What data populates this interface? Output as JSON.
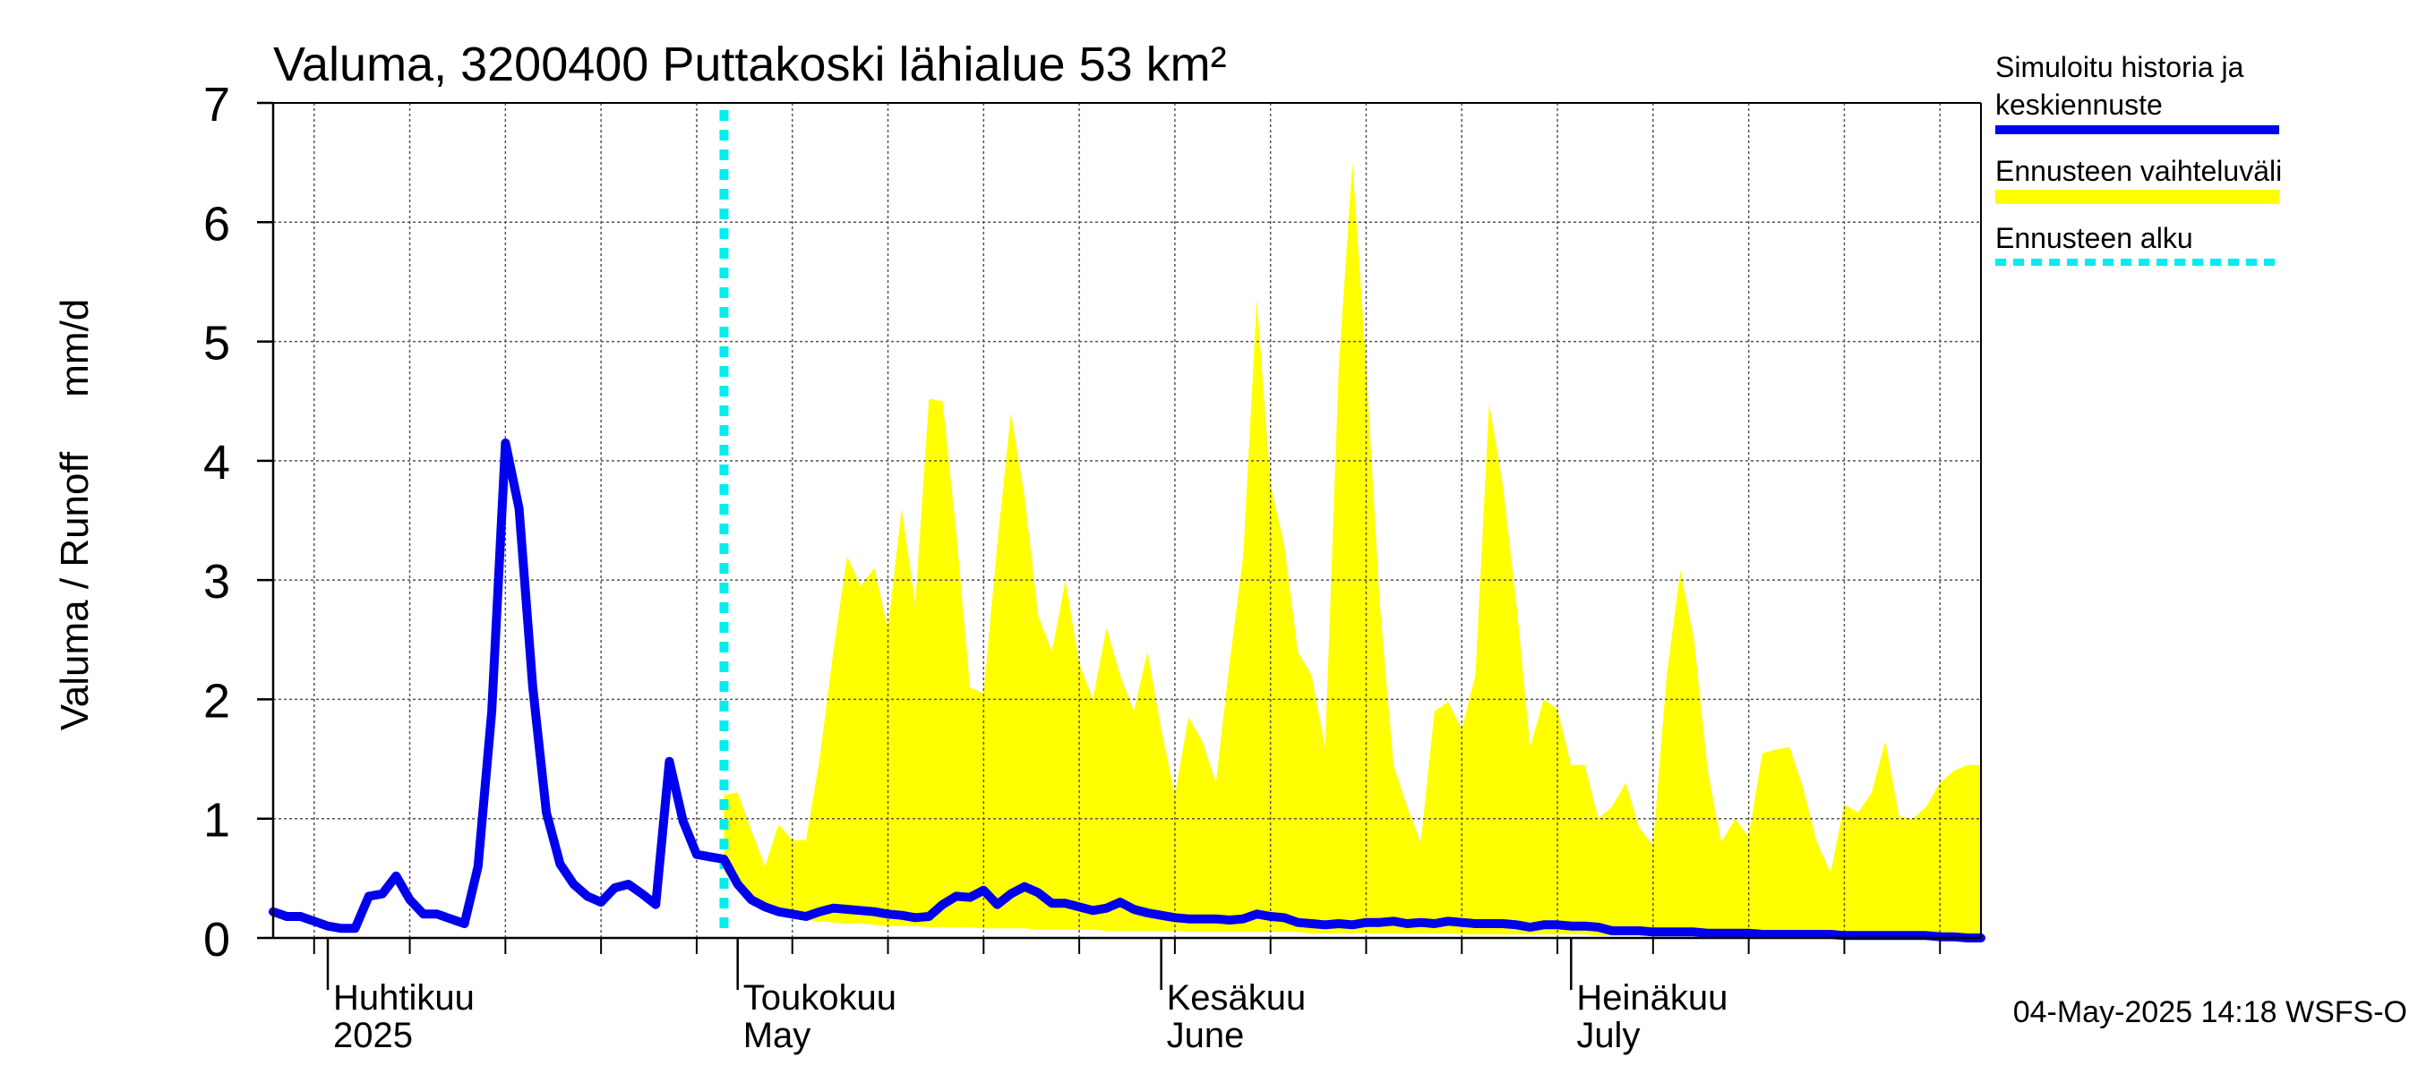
{
  "chart_data": {
    "type": "area",
    "title": "Valuma, 3200400 Puttakoski lähialue 53 km²",
    "ylabel": "Valuma / Runoff     mm/d",
    "ylim": [
      0,
      7
    ],
    "yticks": [
      0,
      1,
      2,
      3,
      4,
      5,
      6,
      7
    ],
    "xlim": [
      "2025-03-28",
      "2025-07-31"
    ],
    "month_labels": [
      {
        "date": "2025-04-01",
        "fi": "Huhtikuu",
        "en": "2025"
      },
      {
        "date": "2025-05-01",
        "fi": "Toukokuu",
        "en": "May"
      },
      {
        "date": "2025-06-01",
        "fi": "Kesäkuu",
        "en": "June"
      },
      {
        "date": "2025-07-01",
        "fi": "Heinäkuu",
        "en": "July"
      }
    ],
    "grid": true,
    "legend_position": "right",
    "legend": [
      {
        "label": "Simuloitu historia ja keskiennuste",
        "color": "#0000ee",
        "style": "solid"
      },
      {
        "label": "Ennusteen vaihteluväli",
        "color": "#ffff00",
        "style": "band"
      },
      {
        "label": "Ennusteen alku",
        "color": "#00eeee",
        "style": "dotted"
      }
    ],
    "forecast_start": "2025-04-30",
    "footer": "04-May-2025 14:18 WSFS-O",
    "series": [
      {
        "name": "Simuloitu historia ja keskiennuste",
        "color": "#0000ee",
        "points": [
          [
            "2025-03-28",
            0.22
          ],
          [
            "2025-03-29",
            0.18
          ],
          [
            "2025-03-30",
            0.18
          ],
          [
            "2025-03-31",
            0.14
          ],
          [
            "2025-04-01",
            0.1
          ],
          [
            "2025-04-02",
            0.08
          ],
          [
            "2025-04-03",
            0.08
          ],
          [
            "2025-04-04",
            0.35
          ],
          [
            "2025-04-05",
            0.37
          ],
          [
            "2025-04-06",
            0.52
          ],
          [
            "2025-04-07",
            0.32
          ],
          [
            "2025-04-08",
            0.2
          ],
          [
            "2025-04-09",
            0.2
          ],
          [
            "2025-04-10",
            0.16
          ],
          [
            "2025-04-11",
            0.12
          ],
          [
            "2025-04-12",
            0.6
          ],
          [
            "2025-04-13",
            1.9
          ],
          [
            "2025-04-14",
            4.15
          ],
          [
            "2025-04-15",
            3.6
          ],
          [
            "2025-04-16",
            2.1
          ],
          [
            "2025-04-17",
            1.05
          ],
          [
            "2025-04-18",
            0.62
          ],
          [
            "2025-04-19",
            0.45
          ],
          [
            "2025-04-20",
            0.35
          ],
          [
            "2025-04-21",
            0.3
          ],
          [
            "2025-04-22",
            0.42
          ],
          [
            "2025-04-23",
            0.45
          ],
          [
            "2025-04-24",
            0.37
          ],
          [
            "2025-04-25",
            0.28
          ],
          [
            "2025-04-26",
            1.48
          ],
          [
            "2025-04-27",
            0.98
          ],
          [
            "2025-04-28",
            0.7
          ],
          [
            "2025-04-29",
            0.68
          ],
          [
            "2025-04-30",
            0.66
          ],
          [
            "2025-05-01",
            0.45
          ],
          [
            "2025-05-02",
            0.32
          ],
          [
            "2025-05-03",
            0.26
          ],
          [
            "2025-05-04",
            0.22
          ],
          [
            "2025-05-05",
            0.2
          ],
          [
            "2025-05-06",
            0.18
          ],
          [
            "2025-05-07",
            0.22
          ],
          [
            "2025-05-08",
            0.25
          ],
          [
            "2025-05-09",
            0.24
          ],
          [
            "2025-05-10",
            0.23
          ],
          [
            "2025-05-11",
            0.22
          ],
          [
            "2025-05-12",
            0.2
          ],
          [
            "2025-05-13",
            0.19
          ],
          [
            "2025-05-14",
            0.17
          ],
          [
            "2025-05-15",
            0.18
          ],
          [
            "2025-05-16",
            0.28
          ],
          [
            "2025-05-17",
            0.35
          ],
          [
            "2025-05-18",
            0.34
          ],
          [
            "2025-05-19",
            0.4
          ],
          [
            "2025-05-20",
            0.28
          ],
          [
            "2025-05-21",
            0.37
          ],
          [
            "2025-05-22",
            0.43
          ],
          [
            "2025-05-23",
            0.38
          ],
          [
            "2025-05-24",
            0.29
          ],
          [
            "2025-05-25",
            0.29
          ],
          [
            "2025-05-26",
            0.26
          ],
          [
            "2025-05-27",
            0.23
          ],
          [
            "2025-05-28",
            0.25
          ],
          [
            "2025-05-29",
            0.3
          ],
          [
            "2025-05-30",
            0.24
          ],
          [
            "2025-05-31",
            0.21
          ],
          [
            "2025-06-01",
            0.19
          ],
          [
            "2025-06-02",
            0.17
          ],
          [
            "2025-06-03",
            0.16
          ],
          [
            "2025-06-04",
            0.16
          ],
          [
            "2025-06-05",
            0.16
          ],
          [
            "2025-06-06",
            0.15
          ],
          [
            "2025-06-07",
            0.16
          ],
          [
            "2025-06-08",
            0.2
          ],
          [
            "2025-06-09",
            0.18
          ],
          [
            "2025-06-10",
            0.17
          ],
          [
            "2025-06-11",
            0.13
          ],
          [
            "2025-06-12",
            0.12
          ],
          [
            "2025-06-13",
            0.11
          ],
          [
            "2025-06-14",
            0.12
          ],
          [
            "2025-06-15",
            0.11
          ],
          [
            "2025-06-16",
            0.13
          ],
          [
            "2025-06-17",
            0.13
          ],
          [
            "2025-06-18",
            0.14
          ],
          [
            "2025-06-19",
            0.12
          ],
          [
            "2025-06-20",
            0.13
          ],
          [
            "2025-06-21",
            0.12
          ],
          [
            "2025-06-22",
            0.14
          ],
          [
            "2025-06-23",
            0.13
          ],
          [
            "2025-06-24",
            0.12
          ],
          [
            "2025-06-25",
            0.12
          ],
          [
            "2025-06-26",
            0.12
          ],
          [
            "2025-06-27",
            0.11
          ],
          [
            "2025-06-28",
            0.09
          ],
          [
            "2025-06-29",
            0.11
          ],
          [
            "2025-06-30",
            0.11
          ],
          [
            "2025-07-01",
            0.1
          ],
          [
            "2025-07-02",
            0.1
          ],
          [
            "2025-07-03",
            0.09
          ],
          [
            "2025-07-04",
            0.06
          ],
          [
            "2025-07-05",
            0.06
          ],
          [
            "2025-07-06",
            0.06
          ],
          [
            "2025-07-07",
            0.05
          ],
          [
            "2025-07-08",
            0.05
          ],
          [
            "2025-07-09",
            0.05
          ],
          [
            "2025-07-10",
            0.05
          ],
          [
            "2025-07-11",
            0.04
          ],
          [
            "2025-07-12",
            0.04
          ],
          [
            "2025-07-13",
            0.04
          ],
          [
            "2025-07-14",
            0.04
          ],
          [
            "2025-07-15",
            0.03
          ],
          [
            "2025-07-16",
            0.03
          ],
          [
            "2025-07-17",
            0.03
          ],
          [
            "2025-07-18",
            0.03
          ],
          [
            "2025-07-19",
            0.03
          ],
          [
            "2025-07-20",
            0.03
          ],
          [
            "2025-07-21",
            0.02
          ],
          [
            "2025-07-22",
            0.02
          ],
          [
            "2025-07-23",
            0.02
          ],
          [
            "2025-07-24",
            0.02
          ],
          [
            "2025-07-25",
            0.02
          ],
          [
            "2025-07-26",
            0.02
          ],
          [
            "2025-07-27",
            0.02
          ],
          [
            "2025-07-28",
            0.01
          ],
          [
            "2025-07-29",
            0.01
          ],
          [
            "2025-07-30",
            0.0
          ],
          [
            "2025-07-31",
            0.0
          ]
        ]
      },
      {
        "name": "Ennusteen vaihteluväli",
        "color": "#ffff00",
        "points": [
          [
            "2025-04-30",
            0.55,
            1.2
          ],
          [
            "2025-05-01",
            0.45,
            1.22
          ],
          [
            "2025-05-02",
            0.35,
            0.9
          ],
          [
            "2025-05-03",
            0.27,
            0.6
          ],
          [
            "2025-05-04",
            0.22,
            0.95
          ],
          [
            "2025-05-05",
            0.18,
            0.82
          ],
          [
            "2025-05-06",
            0.15,
            0.82
          ],
          [
            "2025-05-07",
            0.14,
            1.5
          ],
          [
            "2025-05-08",
            0.13,
            2.4
          ],
          [
            "2025-05-09",
            0.12,
            3.2
          ],
          [
            "2025-05-10",
            0.12,
            2.95
          ],
          [
            "2025-05-11",
            0.11,
            3.1
          ],
          [
            "2025-05-12",
            0.1,
            2.6
          ],
          [
            "2025-05-13",
            0.1,
            3.6
          ],
          [
            "2025-05-14",
            0.1,
            2.8
          ],
          [
            "2025-05-15",
            0.09,
            4.52
          ],
          [
            "2025-05-16",
            0.09,
            4.5
          ],
          [
            "2025-05-17",
            0.09,
            3.4
          ],
          [
            "2025-05-18",
            0.09,
            2.1
          ],
          [
            "2025-05-19",
            0.08,
            2.05
          ],
          [
            "2025-05-20",
            0.08,
            3.3
          ],
          [
            "2025-05-21",
            0.08,
            4.4
          ],
          [
            "2025-05-22",
            0.08,
            3.7
          ],
          [
            "2025-05-23",
            0.07,
            2.7
          ],
          [
            "2025-05-24",
            0.07,
            2.4
          ],
          [
            "2025-05-25",
            0.07,
            3.0
          ],
          [
            "2025-05-26",
            0.07,
            2.3
          ],
          [
            "2025-05-27",
            0.07,
            2.0
          ],
          [
            "2025-05-28",
            0.06,
            2.6
          ],
          [
            "2025-05-29",
            0.06,
            2.2
          ],
          [
            "2025-05-30",
            0.06,
            1.9
          ],
          [
            "2025-05-31",
            0.06,
            2.4
          ],
          [
            "2025-06-01",
            0.06,
            1.75
          ],
          [
            "2025-06-02",
            0.06,
            1.2
          ],
          [
            "2025-06-03",
            0.05,
            1.85
          ],
          [
            "2025-06-04",
            0.05,
            1.65
          ],
          [
            "2025-06-05",
            0.05,
            1.3
          ],
          [
            "2025-06-06",
            0.05,
            2.3
          ],
          [
            "2025-06-07",
            0.05,
            3.2
          ],
          [
            "2025-06-08",
            0.05,
            5.35
          ],
          [
            "2025-06-09",
            0.05,
            3.8
          ],
          [
            "2025-06-10",
            0.05,
            3.3
          ],
          [
            "2025-06-11",
            0.05,
            2.4
          ],
          [
            "2025-06-12",
            0.04,
            2.2
          ],
          [
            "2025-06-13",
            0.04,
            1.6
          ],
          [
            "2025-06-14",
            0.04,
            4.8
          ],
          [
            "2025-06-15",
            0.04,
            6.5
          ],
          [
            "2025-06-16",
            0.04,
            4.8
          ],
          [
            "2025-06-17",
            0.04,
            2.8
          ],
          [
            "2025-06-18",
            0.04,
            1.45
          ],
          [
            "2025-06-19",
            0.04,
            1.1
          ],
          [
            "2025-06-20",
            0.04,
            0.8
          ],
          [
            "2025-06-21",
            0.04,
            1.9
          ],
          [
            "2025-06-22",
            0.04,
            1.98
          ],
          [
            "2025-06-23",
            0.03,
            1.75
          ],
          [
            "2025-06-24",
            0.03,
            2.2
          ],
          [
            "2025-06-25",
            0.03,
            4.48
          ],
          [
            "2025-06-26",
            0.03,
            3.8
          ],
          [
            "2025-06-27",
            0.03,
            2.8
          ],
          [
            "2025-06-28",
            0.03,
            1.6
          ],
          [
            "2025-06-29",
            0.03,
            2.0
          ],
          [
            "2025-06-30",
            0.03,
            1.92
          ],
          [
            "2025-07-01",
            0.03,
            1.45
          ],
          [
            "2025-07-02",
            0.03,
            1.45
          ],
          [
            "2025-07-03",
            0.02,
            1.0
          ],
          [
            "2025-07-04",
            0.02,
            1.1
          ],
          [
            "2025-07-05",
            0.02,
            1.3
          ],
          [
            "2025-07-06",
            0.02,
            0.92
          ],
          [
            "2025-07-07",
            0.02,
            0.78
          ],
          [
            "2025-07-08",
            0.02,
            2.2
          ],
          [
            "2025-07-09",
            0.02,
            3.08
          ],
          [
            "2025-07-10",
            0.02,
            2.5
          ],
          [
            "2025-07-11",
            0.02,
            1.4
          ],
          [
            "2025-07-12",
            0.02,
            0.8
          ],
          [
            "2025-07-13",
            0.02,
            1.0
          ],
          [
            "2025-07-14",
            0.02,
            0.85
          ],
          [
            "2025-07-15",
            0.02,
            1.55
          ],
          [
            "2025-07-16",
            0.01,
            1.58
          ],
          [
            "2025-07-17",
            0.01,
            1.6
          ],
          [
            "2025-07-18",
            0.01,
            1.25
          ],
          [
            "2025-07-19",
            0.01,
            0.8
          ],
          [
            "2025-07-20",
            0.01,
            0.55
          ],
          [
            "2025-07-21",
            0.01,
            1.12
          ],
          [
            "2025-07-22",
            0.01,
            1.05
          ],
          [
            "2025-07-23",
            0.01,
            1.22
          ],
          [
            "2025-07-24",
            0.01,
            1.65
          ],
          [
            "2025-07-25",
            0.01,
            1.02
          ],
          [
            "2025-07-26",
            0.01,
            1.0
          ],
          [
            "2025-07-27",
            0.01,
            1.1
          ],
          [
            "2025-07-28",
            0.01,
            1.3
          ],
          [
            "2025-07-29",
            0.01,
            1.4
          ],
          [
            "2025-07-30",
            0.01,
            1.45
          ],
          [
            "2025-07-31",
            0.01,
            1.45
          ]
        ]
      }
    ]
  }
}
